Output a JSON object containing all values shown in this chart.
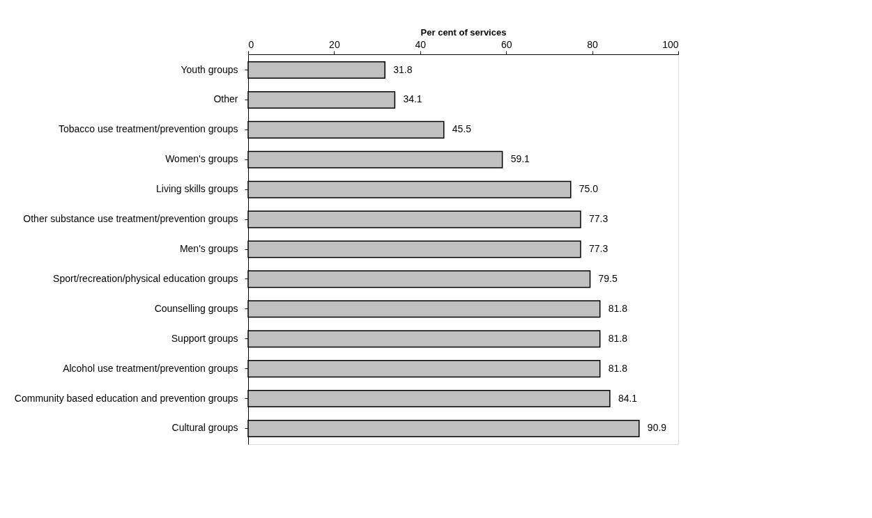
{
  "chart_data": {
    "type": "bar",
    "orientation": "horizontal",
    "xlabel": "Per cent of services",
    "categories": [
      "Youth groups",
      "Other",
      "Tobacco use treatment/prevention groups",
      "Women's groups",
      "Living skills groups",
      "Other substance use treatment/prevention groups",
      "Men's groups",
      "Sport/recreation/physical education groups",
      "Counselling groups",
      "Support groups",
      "Alcohol use treatment/prevention groups",
      "Community based education and prevention groups",
      "Cultural groups"
    ],
    "values": [
      31.8,
      34.1,
      45.5,
      59.1,
      75.0,
      77.3,
      77.3,
      79.5,
      81.8,
      81.8,
      81.8,
      84.1,
      90.9
    ],
    "value_labels": [
      "31.8",
      "34.1",
      "45.5",
      "59.1",
      "75.0",
      "77.3",
      "77.3",
      "79.5",
      "81.8",
      "81.8",
      "81.8",
      "84.1",
      "90.9"
    ],
    "color": "#c0c0c0",
    "xlim": [
      0,
      100
    ],
    "xticks": [
      0,
      20,
      40,
      60,
      80,
      100
    ],
    "grid": false
  }
}
